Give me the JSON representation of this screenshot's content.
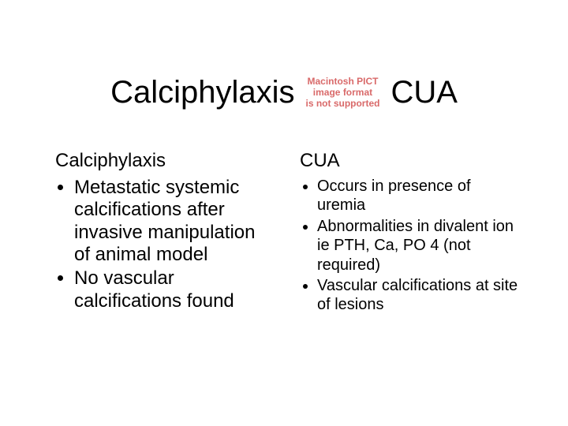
{
  "background_color": "#ffffff",
  "text_color": "#000000",
  "title": {
    "left": "Calciphylaxis",
    "right": "CUA",
    "fontsize": 40,
    "broken_image": {
      "line1": "Macintosh PICT",
      "line2": "image format",
      "line3": "is not supported",
      "color": "#d96a6a",
      "fontsize": 12
    }
  },
  "left_column": {
    "heading": "Calciphylaxis",
    "heading_fontsize": 24,
    "bullet_fontsize": 24,
    "bullets": [
      "Metastatic systemic calcifications after invasive manipulation of animal model",
      "No vascular calcifications found"
    ]
  },
  "right_column": {
    "heading": "CUA",
    "heading_fontsize": 24,
    "bullet_fontsize": 20,
    "bullets": [
      "Occurs in presence of uremia",
      "Abnormalities in divalent ion ie PTH, Ca, PO 4 (not required)",
      "Vascular calcifications at site of lesions"
    ]
  }
}
